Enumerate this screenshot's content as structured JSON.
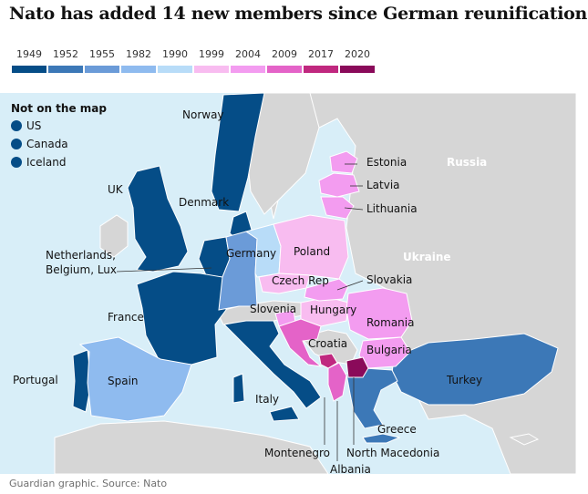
{
  "title": "Nato has added 14 new members since German reunification",
  "legend": [
    {
      "year": "1949",
      "color": "#054d87"
    },
    {
      "year": "1952",
      "color": "#3c78b7"
    },
    {
      "year": "1955",
      "color": "#6b9bd8"
    },
    {
      "year": "1982",
      "color": "#8fbbef"
    },
    {
      "year": "1990",
      "color": "#b8dcf8"
    },
    {
      "year": "1999",
      "color": "#f8bcf0"
    },
    {
      "year": "2004",
      "color": "#f39cf0"
    },
    {
      "year": "2009",
      "color": "#e463c8"
    },
    {
      "year": "2017",
      "color": "#c0287f"
    },
    {
      "year": "2020",
      "color": "#8a0a5a"
    }
  ],
  "not_on_map": {
    "title": "Not on the map",
    "items": [
      "US",
      "Canada",
      "Iceland"
    ]
  },
  "map_labels": {
    "norway": "Norway",
    "uk": "UK",
    "denmark": "Denmark",
    "estonia": "Estonia",
    "latvia": "Latvia",
    "lithuania": "Lithuania",
    "russia": "Russia",
    "ukraine": "Ukraine",
    "netherlands": "Netherlands,",
    "belgium_lux": "Belgium, Lux",
    "germany": "Germany",
    "poland": "Poland",
    "czech": "Czech Rep",
    "slovakia": "Slovakia",
    "france": "France",
    "slovenia": "Slovenia",
    "hungary": "Hungary",
    "romania": "Romania",
    "croatia": "Croatia",
    "bulgaria": "Bulgaria",
    "portugal": "Portugal",
    "spain": "Spain",
    "italy": "Italy",
    "turkey": "Turkey",
    "greece": "Greece",
    "montenegro": "Montenegro",
    "north_macedonia": "North Macedonia",
    "albania": "Albania"
  },
  "source": "Guardian graphic. Source: Nato"
}
